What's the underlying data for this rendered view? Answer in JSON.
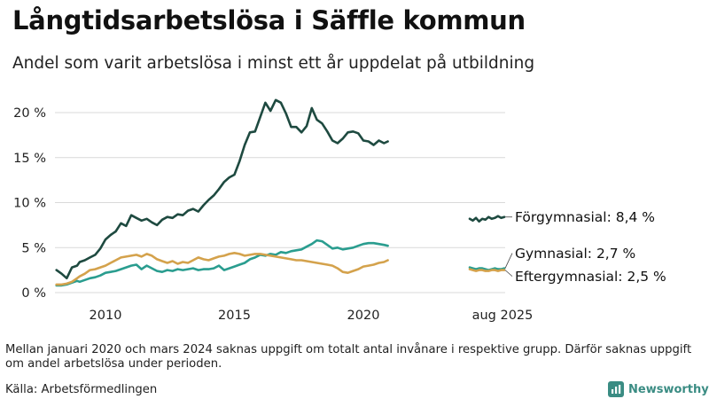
{
  "title": "Långtidsarbetslösa i Säffle kommun",
  "subtitle": "Andel som varit arbetslösa i minst ett år uppdelat på utbildning",
  "footnote": "Mellan januari 2020 och mars 2024 saknas uppgift om totalt antal invånare i respektive grupp. Därför saknas uppgift om andel arbetslösa under perioden.",
  "source": "Källa: Arbetsförmedlingen",
  "brand": "Newsworthy",
  "colors": {
    "forgymnasial": "#1e4a40",
    "gymnasial": "#2a9d8f",
    "eftergymnasial": "#d4a24c",
    "grid": "#d9d9d9",
    "brand": "#3a8c83"
  },
  "chart_data": {
    "type": "line",
    "title": "Långtidsarbetslösa i Säffle kommun",
    "xlabel": "",
    "ylabel": "",
    "ylim": [
      0,
      21
    ],
    "y_ticks": [
      {
        "value": 0,
        "label": "0 %"
      },
      {
        "value": 5,
        "label": "5 %"
      },
      {
        "value": 10,
        "label": "10 %"
      },
      {
        "value": 15,
        "label": "15 %"
      },
      {
        "value": 20,
        "label": "20 %"
      }
    ],
    "x_ticks": [
      {
        "value": 2010,
        "label": "2010"
      },
      {
        "value": 2015,
        "label": "2015"
      },
      {
        "value": 2020,
        "label": "2020"
      }
    ],
    "latest_tick_label": "aug 2025",
    "series": [
      {
        "name": "Förgymnasial",
        "end_label": "Förgymnasial: 8,4 %",
        "color_key": "forgymnasial",
        "x": [
          2008.1,
          2008.3,
          2008.5,
          2008.7,
          2008.9,
          2009.0,
          2009.2,
          2009.4,
          2009.6,
          2009.8,
          2010.0,
          2010.2,
          2010.4,
          2010.6,
          2010.8,
          2011.0,
          2011.2,
          2011.4,
          2011.6,
          2011.8,
          2012.0,
          2012.2,
          2012.4,
          2012.6,
          2012.8,
          2013.0,
          2013.2,
          2013.4,
          2013.6,
          2013.8,
          2014.0,
          2014.2,
          2014.4,
          2014.6,
          2014.8,
          2015.0,
          2015.2,
          2015.4,
          2015.6,
          2015.8,
          2016.0,
          2016.2,
          2016.4,
          2016.6,
          2016.8,
          2017.0,
          2017.2,
          2017.4,
          2017.6,
          2017.8,
          2018.0,
          2018.2,
          2018.4,
          2018.6,
          2018.8,
          2019.0,
          2019.2,
          2019.4,
          2019.6,
          2019.8,
          2020.0,
          2020.2,
          2020.4,
          2020.6,
          2020.8,
          2020.95
        ],
        "values": [
          2.5,
          2.1,
          1.6,
          2.8,
          3.0,
          3.4,
          3.6,
          3.9,
          4.2,
          4.9,
          5.9,
          6.4,
          6.8,
          7.7,
          7.4,
          8.6,
          8.3,
          8.0,
          8.2,
          7.8,
          7.5,
          8.1,
          8.4,
          8.3,
          8.7,
          8.6,
          9.1,
          9.3,
          9.0,
          9.7,
          10.3,
          10.8,
          11.5,
          12.3,
          12.8,
          13.1,
          14.6,
          16.4,
          17.8,
          17.9,
          19.5,
          21.1,
          20.2,
          21.4,
          21.1,
          19.9,
          18.4,
          18.4,
          17.8,
          18.5,
          20.5,
          19.2,
          18.8,
          17.9,
          16.9,
          16.6,
          17.1,
          17.8,
          17.9,
          17.7,
          16.9,
          16.8,
          16.4,
          16.9,
          16.6,
          16.8
        ]
      },
      {
        "name": "Gymnasial",
        "end_label": "Gymnasial: 2,7 %",
        "color_key": "gymnasial",
        "x": [
          2008.1,
          2008.3,
          2008.5,
          2008.7,
          2008.9,
          2009.0,
          2009.2,
          2009.4,
          2009.6,
          2009.8,
          2010.0,
          2010.2,
          2010.4,
          2010.6,
          2010.8,
          2011.0,
          2011.2,
          2011.4,
          2011.6,
          2011.8,
          2012.0,
          2012.2,
          2012.4,
          2012.6,
          2012.8,
          2013.0,
          2013.2,
          2013.4,
          2013.6,
          2013.8,
          2014.0,
          2014.2,
          2014.4,
          2014.6,
          2014.8,
          2015.0,
          2015.2,
          2015.4,
          2015.6,
          2015.8,
          2016.0,
          2016.2,
          2016.4,
          2016.6,
          2016.8,
          2017.0,
          2017.2,
          2017.4,
          2017.6,
          2017.8,
          2018.0,
          2018.2,
          2018.4,
          2018.6,
          2018.8,
          2019.0,
          2019.2,
          2019.4,
          2019.6,
          2019.8,
          2020.0,
          2020.2,
          2020.4,
          2020.6,
          2020.8,
          2020.95
        ],
        "values": [
          0.8,
          0.8,
          0.9,
          1.1,
          1.3,
          1.2,
          1.4,
          1.6,
          1.7,
          1.9,
          2.2,
          2.3,
          2.4,
          2.6,
          2.8,
          3.0,
          3.1,
          2.6,
          3.0,
          2.7,
          2.4,
          2.3,
          2.5,
          2.4,
          2.6,
          2.5,
          2.6,
          2.7,
          2.5,
          2.6,
          2.6,
          2.7,
          3.0,
          2.5,
          2.7,
          2.9,
          3.1,
          3.3,
          3.7,
          3.9,
          4.2,
          4.1,
          4.3,
          4.2,
          4.5,
          4.4,
          4.6,
          4.7,
          4.8,
          5.1,
          5.4,
          5.8,
          5.7,
          5.3,
          4.9,
          5.0,
          4.8,
          4.9,
          5.0,
          5.2,
          5.4,
          5.5,
          5.5,
          5.4,
          5.3,
          5.2
        ]
      },
      {
        "name": "Eftergymnasial",
        "end_label": "Eftergymnasial: 2,5 %",
        "color_key": "eftergymnasial",
        "x": [
          2008.1,
          2008.3,
          2008.5,
          2008.7,
          2008.9,
          2009.0,
          2009.2,
          2009.4,
          2009.6,
          2009.8,
          2010.0,
          2010.2,
          2010.4,
          2010.6,
          2010.8,
          2011.0,
          2011.2,
          2011.4,
          2011.6,
          2011.8,
          2012.0,
          2012.2,
          2012.4,
          2012.6,
          2012.8,
          2013.0,
          2013.2,
          2013.4,
          2013.6,
          2013.8,
          2014.0,
          2014.2,
          2014.4,
          2014.6,
          2014.8,
          2015.0,
          2015.2,
          2015.4,
          2015.6,
          2015.8,
          2016.0,
          2016.2,
          2016.4,
          2016.6,
          2016.8,
          2017.0,
          2017.2,
          2017.4,
          2017.6,
          2017.8,
          2018.0,
          2018.2,
          2018.4,
          2018.6,
          2018.8,
          2019.0,
          2019.2,
          2019.4,
          2019.6,
          2019.8,
          2020.0,
          2020.2,
          2020.4,
          2020.6,
          2020.8,
          2020.95
        ],
        "values": [
          0.9,
          0.9,
          1.0,
          1.2,
          1.6,
          1.8,
          2.1,
          2.5,
          2.6,
          2.8,
          3.0,
          3.3,
          3.6,
          3.9,
          4.0,
          4.1,
          4.2,
          4.0,
          4.3,
          4.1,
          3.7,
          3.5,
          3.3,
          3.5,
          3.2,
          3.4,
          3.3,
          3.6,
          3.9,
          3.7,
          3.6,
          3.8,
          4.0,
          4.1,
          4.3,
          4.4,
          4.3,
          4.1,
          4.2,
          4.3,
          4.3,
          4.2,
          4.1,
          4.0,
          3.9,
          3.8,
          3.7,
          3.6,
          3.6,
          3.5,
          3.4,
          3.3,
          3.2,
          3.1,
          3.0,
          2.7,
          2.3,
          2.2,
          2.4,
          2.6,
          2.9,
          3.0,
          3.1,
          3.3,
          3.4,
          3.6
        ]
      }
    ],
    "latest_period": {
      "label": "aug 2025",
      "series": [
        {
          "name": "Förgymnasial",
          "values": [
            8.2,
            8.0,
            8.3,
            7.9,
            8.2,
            8.1,
            8.4,
            8.2,
            8.3,
            8.5,
            8.3,
            8.4
          ]
        },
        {
          "name": "Gymnasial",
          "values": [
            2.8,
            2.7,
            2.6,
            2.7,
            2.7,
            2.6,
            2.5,
            2.6,
            2.7,
            2.6,
            2.6,
            2.7
          ]
        },
        {
          "name": "Eftergymnasial",
          "values": [
            2.6,
            2.5,
            2.4,
            2.5,
            2.5,
            2.4,
            2.4,
            2.5,
            2.5,
            2.4,
            2.5,
            2.5
          ]
        }
      ]
    }
  }
}
